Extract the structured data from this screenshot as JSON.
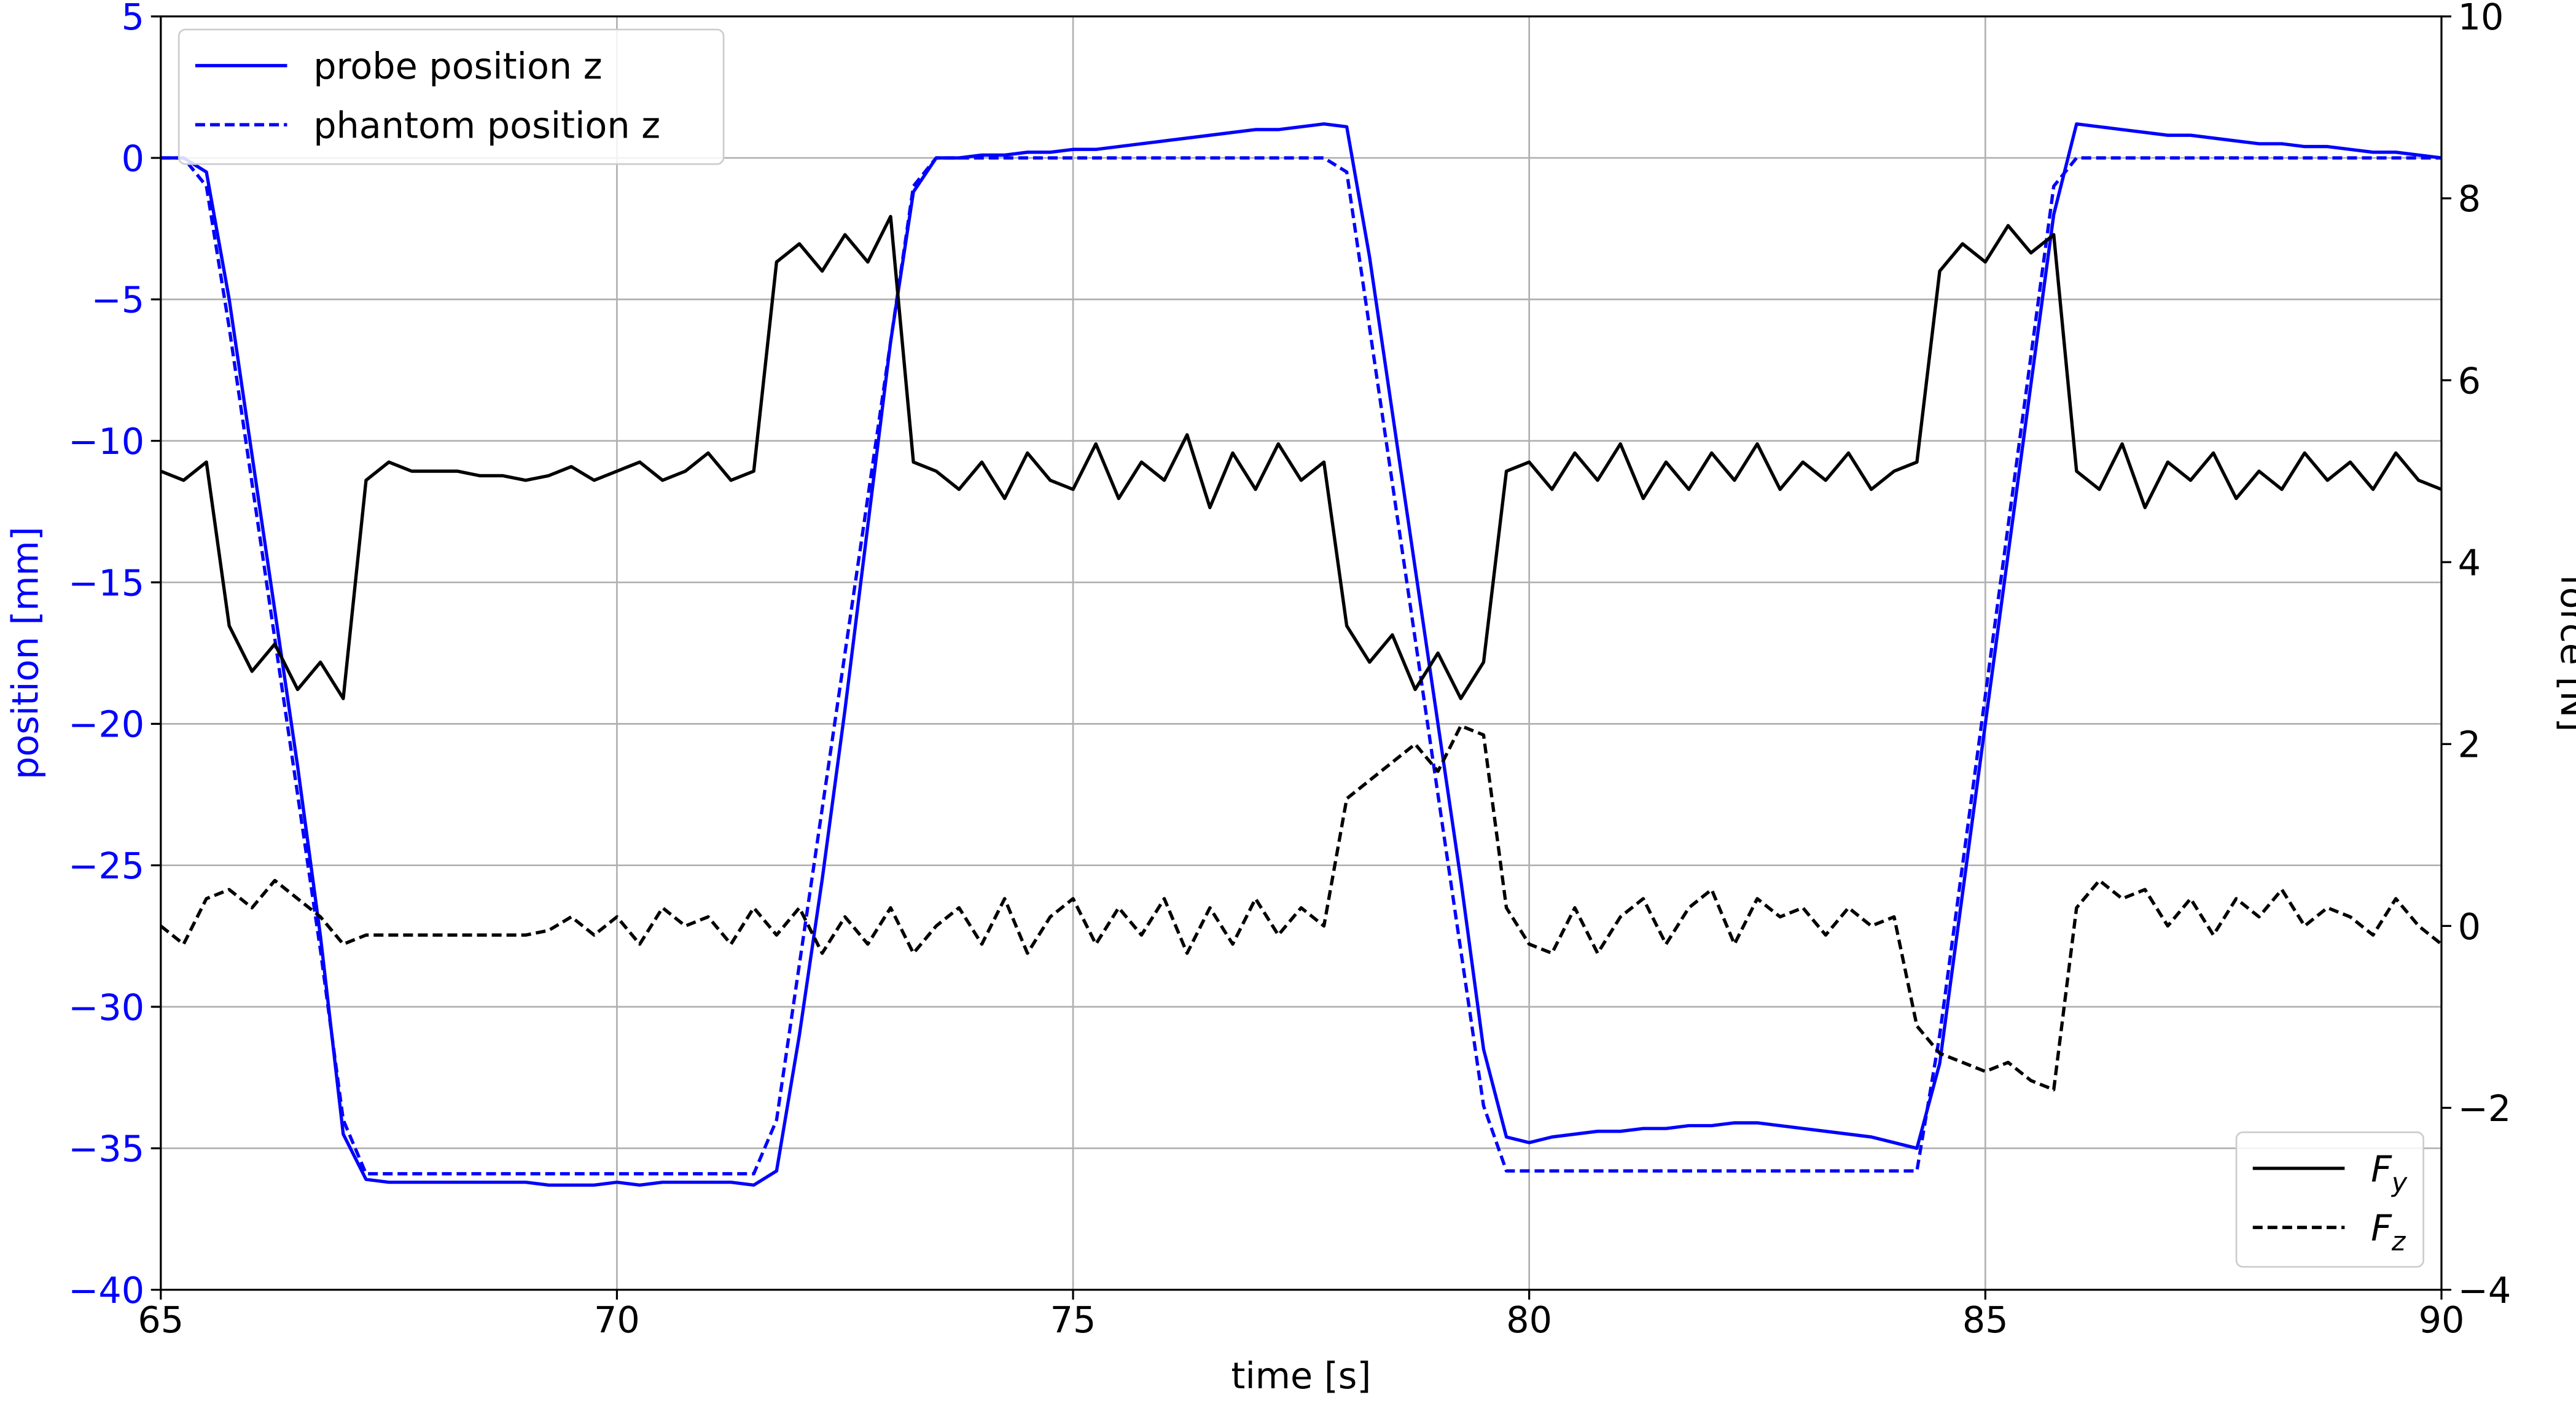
{
  "chart_data": {
    "type": "line",
    "xlabel": "time [s]",
    "ylabel": "position [mm]",
    "y2label": "force [N]",
    "ylabel_color": "#0000ff",
    "grid": true,
    "xlim": [
      65,
      90
    ],
    "xticks": [
      65,
      70,
      75,
      80,
      85,
      90
    ],
    "ylim": [
      -40,
      5
    ],
    "yticks": [
      {
        "value": -40,
        "label": "−40"
      },
      {
        "value": -35,
        "label": "−35"
      },
      {
        "value": -30,
        "label": "−30"
      },
      {
        "value": -25,
        "label": "−25"
      },
      {
        "value": -20,
        "label": "−20"
      },
      {
        "value": -15,
        "label": "−15"
      },
      {
        "value": -10,
        "label": "−10"
      },
      {
        "value": -5,
        "label": "−5"
      },
      0,
      5
    ],
    "y2lim": [
      -4,
      10
    ],
    "y2ticks": [
      {
        "value": -4,
        "label": "−4"
      },
      {
        "value": -2,
        "label": "−2"
      },
      0,
      2,
      4,
      6,
      8,
      10
    ],
    "x": [
      65,
      65.25,
      65.5,
      65.75,
      66,
      66.25,
      66.5,
      66.75,
      67,
      67.25,
      67.5,
      67.75,
      68,
      68.25,
      68.5,
      68.75,
      69,
      69.25,
      69.5,
      69.75,
      70,
      70.25,
      70.5,
      70.75,
      71,
      71.25,
      71.5,
      71.75,
      72,
      72.25,
      72.5,
      72.75,
      73,
      73.25,
      73.5,
      73.75,
      74,
      74.25,
      74.5,
      74.75,
      75,
      75.25,
      75.5,
      75.75,
      76,
      76.25,
      76.5,
      76.75,
      77,
      77.25,
      77.5,
      77.75,
      78,
      78.25,
      78.5,
      78.75,
      79,
      79.25,
      79.5,
      79.75,
      80,
      80.25,
      80.5,
      80.75,
      81,
      81.25,
      81.5,
      81.75,
      82,
      82.25,
      82.5,
      82.75,
      83,
      83.25,
      83.5,
      83.75,
      84,
      84.25,
      84.5,
      84.75,
      85,
      85.25,
      85.5,
      85.75,
      86,
      86.25,
      86.5,
      86.75,
      87,
      87.25,
      87.5,
      87.75,
      88,
      88.25,
      88.5,
      88.75,
      89,
      89.25,
      89.5,
      89.75,
      90
    ],
    "series": [
      {
        "name": "probe position z",
        "color": "#0000ff",
        "linestyle": "solid",
        "axis": "y",
        "legend": "upper left",
        "values": [
          0,
          0,
          -0.5,
          -5,
          -10.5,
          -16,
          -21.5,
          -27.5,
          -34.5,
          -36.1,
          -36.2,
          -36.2,
          -36.2,
          -36.2,
          -36.2,
          -36.2,
          -36.2,
          -36.3,
          -36.3,
          -36.3,
          -36.2,
          -36.3,
          -36.2,
          -36.2,
          -36.2,
          -36.2,
          -36.3,
          -35.8,
          -31,
          -25.5,
          -19.5,
          -13,
          -6.5,
          -1.2,
          0,
          0,
          0.1,
          0.1,
          0.2,
          0.2,
          0.3,
          0.3,
          0.4,
          0.5,
          0.6,
          0.7,
          0.8,
          0.9,
          1.0,
          1.0,
          1.1,
          1.2,
          1.1,
          -3.5,
          -9,
          -14.5,
          -20,
          -25.5,
          -31.5,
          -34.6,
          -34.8,
          -34.6,
          -34.5,
          -34.4,
          -34.4,
          -34.3,
          -34.3,
          -34.2,
          -34.2,
          -34.1,
          -34.1,
          -34.2,
          -34.3,
          -34.4,
          -34.5,
          -34.6,
          -34.8,
          -35,
          -32,
          -26,
          -20,
          -14,
          -8,
          -2,
          1.2,
          1.1,
          1.0,
          0.9,
          0.8,
          0.8,
          0.7,
          0.6,
          0.5,
          0.5,
          0.4,
          0.4,
          0.3,
          0.2,
          0.2,
          0.1,
          0
        ]
      },
      {
        "name": "phantom position z",
        "color": "#0000ff",
        "linestyle": "dashed",
        "axis": "y",
        "legend": "upper left",
        "values": [
          0,
          0,
          -1,
          -6,
          -11.5,
          -17,
          -22.5,
          -28,
          -34,
          -35.9,
          -35.9,
          -35.9,
          -35.9,
          -35.9,
          -35.9,
          -35.9,
          -35.9,
          -35.9,
          -35.9,
          -35.9,
          -35.9,
          -35.9,
          -35.9,
          -35.9,
          -35.9,
          -35.9,
          -35.9,
          -34,
          -28.5,
          -23,
          -17.5,
          -12,
          -6.5,
          -1,
          0,
          0,
          0,
          0,
          0,
          0,
          0,
          0,
          0,
          0,
          0,
          0,
          0,
          0,
          0,
          0,
          0,
          0,
          -0.5,
          -6,
          -11.5,
          -17,
          -22.5,
          -28,
          -33.5,
          -35.8,
          -35.8,
          -35.8,
          -35.8,
          -35.8,
          -35.8,
          -35.8,
          -35.8,
          -35.8,
          -35.8,
          -35.8,
          -35.8,
          -35.8,
          -35.8,
          -35.8,
          -35.8,
          -35.8,
          -35.8,
          -35.8,
          -31,
          -25,
          -19,
          -13,
          -7,
          -1,
          0,
          0,
          0,
          0,
          0,
          0,
          0,
          0,
          0,
          0,
          0,
          0,
          0,
          0,
          0,
          0,
          0
        ]
      },
      {
        "name": "Fy",
        "color": "#000000",
        "linestyle": "solid",
        "axis": "y2",
        "legend": "lower right",
        "values": [
          5.0,
          4.9,
          5.1,
          3.3,
          2.8,
          3.1,
          2.6,
          2.9,
          2.5,
          4.9,
          5.1,
          5.0,
          5.0,
          5.0,
          4.95,
          4.95,
          4.9,
          4.95,
          5.05,
          4.9,
          5.0,
          5.1,
          4.9,
          5.0,
          5.2,
          4.9,
          5.0,
          7.3,
          7.5,
          7.2,
          7.6,
          7.3,
          7.8,
          5.1,
          5.0,
          4.8,
          5.1,
          4.7,
          5.2,
          4.9,
          4.8,
          5.3,
          4.7,
          5.1,
          4.9,
          5.4,
          4.6,
          5.2,
          4.8,
          5.3,
          4.9,
          5.1,
          3.3,
          2.9,
          3.2,
          2.6,
          3.0,
          2.5,
          2.9,
          5.0,
          5.1,
          4.8,
          5.2,
          4.9,
          5.3,
          4.7,
          5.1,
          4.8,
          5.2,
          4.9,
          5.3,
          4.8,
          5.1,
          4.9,
          5.2,
          4.8,
          5.0,
          5.1,
          7.2,
          7.5,
          7.3,
          7.7,
          7.4,
          7.6,
          5.0,
          4.8,
          5.3,
          4.6,
          5.1,
          4.9,
          5.2,
          4.7,
          5.0,
          4.8,
          5.2,
          4.9,
          5.1,
          4.8,
          5.2,
          4.9,
          4.8
        ]
      },
      {
        "name": "Fz",
        "color": "#000000",
        "linestyle": "dashed",
        "axis": "y2",
        "legend": "lower right",
        "values": [
          0.0,
          -0.2,
          0.3,
          0.4,
          0.2,
          0.5,
          0.3,
          0.1,
          -0.2,
          -0.1,
          -0.1,
          -0.1,
          -0.1,
          -0.1,
          -0.1,
          -0.1,
          -0.1,
          -0.05,
          0.1,
          -0.1,
          0.1,
          -0.2,
          0.2,
          0,
          0.1,
          -0.2,
          0.2,
          -0.1,
          0.2,
          -0.3,
          0.1,
          -0.2,
          0.2,
          -0.3,
          0.0,
          0.2,
          -0.2,
          0.3,
          -0.3,
          0.1,
          0.3,
          -0.2,
          0.2,
          -0.1,
          0.3,
          -0.3,
          0.2,
          -0.2,
          0.3,
          -0.1,
          0.2,
          0.0,
          1.4,
          1.6,
          1.8,
          2.0,
          1.7,
          2.2,
          2.1,
          0.2,
          -0.2,
          -0.3,
          0.2,
          -0.3,
          0.1,
          0.3,
          -0.2,
          0.2,
          0.4,
          -0.2,
          0.3,
          0.1,
          0.2,
          -0.1,
          0.2,
          0.0,
          0.1,
          -1.1,
          -1.4,
          -1.5,
          -1.6,
          -1.5,
          -1.7,
          -1.8,
          0.2,
          0.5,
          0.3,
          0.4,
          0.0,
          0.3,
          -0.1,
          0.3,
          0.1,
          0.4,
          0.0,
          0.2,
          0.1,
          -0.1,
          0.3,
          0.0,
          -0.2
        ]
      }
    ]
  }
}
